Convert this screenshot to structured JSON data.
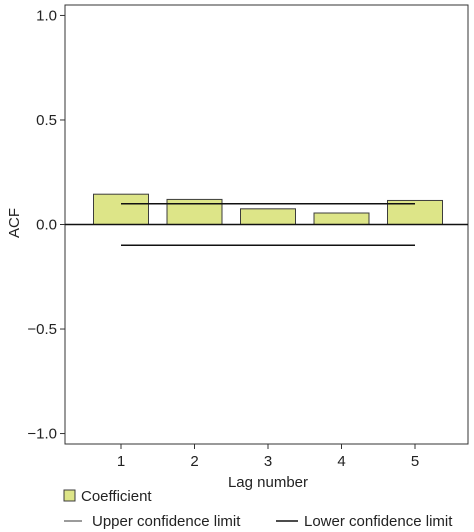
{
  "chart_data": {
    "type": "bar",
    "categories": [
      "1",
      "2",
      "3",
      "4",
      "5"
    ],
    "series": [
      {
        "name": "Coefficient",
        "values": [
          0.145,
          0.12,
          0.075,
          0.055,
          0.115
        ]
      }
    ],
    "confidence_limits": {
      "upper": 0.099,
      "lower": -0.099,
      "upper_label": "Upper confidence limit",
      "lower_label": "Lower confidence limit"
    },
    "xlabel": "Lag number",
    "ylabel": "ACF",
    "ylim": [
      -1.05,
      1.05
    ],
    "yticks": [
      -1.0,
      -0.5,
      0.0,
      0.5,
      1.0
    ],
    "ytick_labels": [
      "−1.0",
      "−0.5",
      "0.0",
      "0.5",
      "1.0"
    ],
    "grid": false,
    "legend_position": "bottom-left",
    "colors": {
      "bar_fill": "#dde588",
      "bar_stroke": "#3c3c3c",
      "upper_limit_line": "#7a7a7a",
      "lower_limit_line": "#111111",
      "zero_line": "#111111",
      "axis": "#333333"
    }
  }
}
